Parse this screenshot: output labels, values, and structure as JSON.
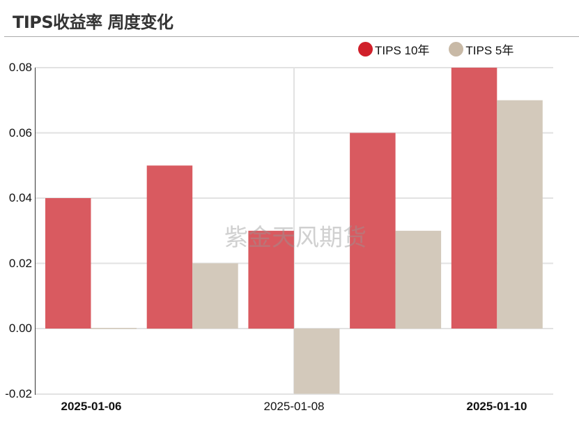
{
  "header": {
    "title": "TIPS收益率 周度变化"
  },
  "legend": {
    "items": [
      {
        "label": "TIPS 10年",
        "color": "#d0202a"
      },
      {
        "label": "TIPS 5年",
        "color": "#c8b9a6"
      }
    ]
  },
  "watermark": "紫金天风期货",
  "axis": {
    "y_ticks": [
      "0.08",
      "0.06",
      "0.04",
      "0.02",
      "0.00",
      "-0.02"
    ],
    "x_ticks": [
      {
        "label": "2025-01-06",
        "bold": true
      },
      {
        "label": "2025-01-08",
        "bold": false
      },
      {
        "label": "2025-01-10",
        "bold": true
      }
    ]
  },
  "chart_data": {
    "type": "bar",
    "title": "TIPS收益率 周度变化",
    "categories": [
      "2025-01-06",
      "2025-01-07",
      "2025-01-08",
      "2025-01-09",
      "2025-01-10"
    ],
    "series": [
      {
        "name": "TIPS 10年",
        "color": "#d95a60",
        "values": [
          0.04,
          0.05,
          0.03,
          0.06,
          0.08
        ]
      },
      {
        "name": "TIPS 5年",
        "color": "#d3c9bb",
        "values": [
          0.0,
          0.02,
          -0.02,
          0.03,
          0.07
        ]
      }
    ],
    "xlabel": "",
    "ylabel": "",
    "ylim": [
      -0.02,
      0.08
    ],
    "y_ticks": [
      -0.02,
      0.0,
      0.02,
      0.04,
      0.06,
      0.08
    ],
    "x_tick_labels_shown": [
      "2025-01-06",
      "2025-01-08",
      "2025-01-10"
    ],
    "grid": true,
    "legend_position": "top-right"
  }
}
